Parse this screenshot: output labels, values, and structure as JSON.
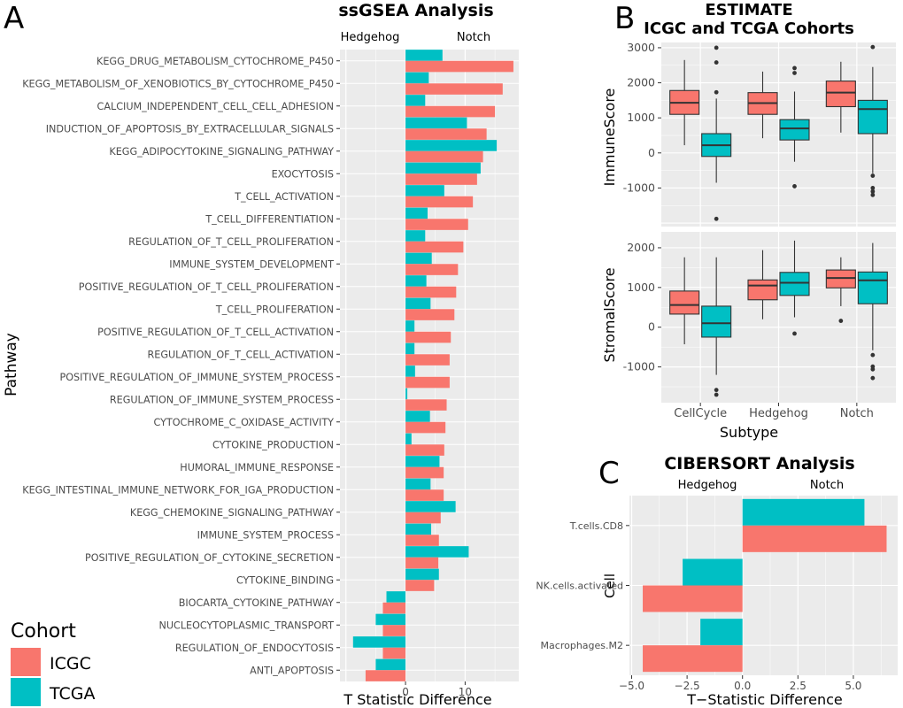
{
  "panel_labels": {
    "a": "A",
    "b": "B",
    "c": "C"
  },
  "colors": {
    "ICGC": "#F8766D",
    "TCGA": "#00BFC4",
    "panel_bg": "#EBEBEB",
    "grid_major": "#FFFFFF",
    "outlier": "#333333",
    "text_tick": "#4D4D4D"
  },
  "legend": {
    "title": "Cohort",
    "items": [
      "ICGC",
      "TCGA"
    ]
  },
  "chart_data": [
    {
      "type": "bar",
      "orientation": "horizontal",
      "title": "ssGSEA Analysis",
      "xlabel": "T Statistic Difference",
      "ylabel": "Pathway",
      "annotations": [
        "Hedgehog",
        "Notch"
      ],
      "xlim": [
        -11,
        19
      ],
      "xticks": [
        0,
        10
      ],
      "grid": true,
      "categories": [
        "KEGG_DRUG_METABOLISM_CYTOCHROME_P450",
        "KEGG_METABOLISM_OF_XENOBIOTICS_BY_CYTOCHROME_P450",
        "CALCIUM_INDEPENDENT_CELL_CELL_ADHESION",
        "INDUCTION_OF_APOPTOSIS_BY_EXTRACELLULAR_SIGNALS",
        "KEGG_ADIPOCYTOKINE_SIGNALING_PATHWAY",
        "EXOCYTOSIS",
        "T_CELL_ACTIVATION",
        "T_CELL_DIFFERENTIATION",
        "REGULATION_OF_T_CELL_PROLIFERATION",
        "IMMUNE_SYSTEM_DEVELOPMENT",
        "POSITIVE_REGULATION_OF_T_CELL_PROLIFERATION",
        "T_CELL_PROLIFERATION",
        "POSITIVE_REGULATION_OF_T_CELL_ACTIVATION",
        "REGULATION_OF_T_CELL_ACTIVATION",
        "POSITIVE_REGULATION_OF_IMMUNE_SYSTEM_PROCESS",
        "REGULATION_OF_IMMUNE_SYSTEM_PROCESS",
        "CYTOCHROME_C_OXIDASE_ACTIVITY",
        "CYTOKINE_PRODUCTION",
        "HUMORAL_IMMUNE_RESPONSE",
        "KEGG_INTESTINAL_IMMUNE_NETWORK_FOR_IGA_PRODUCTION",
        "KEGG_CHEMOKINE_SIGNALING_PATHWAY",
        "IMMUNE_SYSTEM_PROCESS",
        "POSITIVE_REGULATION_OF_CYTOKINE_SECRETION",
        "CYTOKINE_BINDING",
        "BIOCARTA_CYTOKINE_PATHWAY",
        "NUCLEOCYTOPLASMIC_TRANSPORT",
        "REGULATION_OF_ENDOCYTOSIS",
        "ANTI_APOPTOSIS"
      ],
      "series": [
        {
          "name": "ICGC",
          "values": [
            18.1,
            16.3,
            15.0,
            13.6,
            13.0,
            12.0,
            11.3,
            10.5,
            9.7,
            8.8,
            8.5,
            8.2,
            7.6,
            7.4,
            7.4,
            6.9,
            6.7,
            6.5,
            6.4,
            6.4,
            5.9,
            5.6,
            5.5,
            4.8,
            -3.8,
            -3.8,
            -3.8,
            -6.7
          ]
        },
        {
          "name": "TCGA",
          "values": [
            6.2,
            3.9,
            3.3,
            10.3,
            15.3,
            12.6,
            6.5,
            3.7,
            3.3,
            4.4,
            3.5,
            4.2,
            1.5,
            1.5,
            1.6,
            0.3,
            4.1,
            1.0,
            5.7,
            4.2,
            8.4,
            4.3,
            10.6,
            5.6,
            -3.2,
            -5.0,
            -8.8,
            -5.0
          ]
        }
      ]
    },
    {
      "type": "box",
      "title": "ESTIMATE\nICGC and TCGA Cohorts",
      "xlabel": "Subtype",
      "categories": [
        "CellCycle",
        "Hedgehog",
        "Notch"
      ],
      "facets": [
        {
          "ylabel": "ImmuneScore",
          "ylim": [
            -2100,
            3150
          ],
          "yticks": [
            -1000,
            0,
            1000,
            2000,
            3000
          ],
          "series": [
            {
              "name": "ICGC",
              "boxes": [
                {
                  "min": 220,
                  "q1": 1100,
                  "median": 1430,
                  "q3": 1780,
                  "max": 2650,
                  "outliers": []
                },
                {
                  "min": 420,
                  "q1": 1100,
                  "median": 1420,
                  "q3": 1720,
                  "max": 2320,
                  "outliers": []
                },
                {
                  "min": 580,
                  "q1": 1320,
                  "median": 1720,
                  "q3": 2050,
                  "max": 2600,
                  "outliers": []
                }
              ]
            },
            {
              "name": "TCGA",
              "boxes": [
                {
                  "min": -850,
                  "q1": -100,
                  "median": 220,
                  "q3": 550,
                  "max": 1550,
                  "outliers": [
                    3000,
                    2580,
                    1730,
                    -1880
                  ]
                },
                {
                  "min": -250,
                  "q1": 370,
                  "median": 700,
                  "q3": 950,
                  "max": 1750,
                  "outliers": [
                    2420,
                    2280,
                    -950
                  ]
                },
                {
                  "min": -580,
                  "q1": 550,
                  "median": 1250,
                  "q3": 1500,
                  "max": 2450,
                  "outliers": [
                    3020,
                    -650,
                    -1000,
                    -1100,
                    -1200
                  ]
                }
              ]
            }
          ]
        },
        {
          "ylabel": "StromalScore",
          "ylim": [
            -1900,
            2400
          ],
          "yticks": [
            -1000,
            0,
            1000,
            2000
          ],
          "series": [
            {
              "name": "ICGC",
              "boxes": [
                {
                  "min": -430,
                  "q1": 330,
                  "median": 560,
                  "q3": 910,
                  "max": 1760,
                  "outliers": []
                },
                {
                  "min": 200,
                  "q1": 690,
                  "median": 1050,
                  "q3": 1190,
                  "max": 1940,
                  "outliers": []
                },
                {
                  "min": 530,
                  "q1": 990,
                  "median": 1240,
                  "q3": 1440,
                  "max": 1760,
                  "outliers": [
                    160
                  ]
                }
              ]
            },
            {
              "name": "TCGA",
              "boxes": [
                {
                  "min": -1200,
                  "q1": -250,
                  "median": 100,
                  "q3": 530,
                  "max": 1760,
                  "outliers": [
                    -1580,
                    -1700
                  ]
                },
                {
                  "min": 250,
                  "q1": 800,
                  "median": 1120,
                  "q3": 1380,
                  "max": 2180,
                  "outliers": [
                    -160
                  ]
                },
                {
                  "min": -580,
                  "q1": 590,
                  "median": 1180,
                  "q3": 1390,
                  "max": 2120,
                  "outliers": [
                    -700,
                    -990,
                    -1060,
                    -1280
                  ]
                }
              ]
            }
          ]
        }
      ]
    },
    {
      "type": "bar",
      "orientation": "horizontal",
      "title": "CIBERSORT Analysis",
      "xlabel": "T−Statistic Difference",
      "ylabel": "Cell",
      "annotations": [
        "Hedgehog",
        "Notch"
      ],
      "xlim": [
        -5.1,
        7.0
      ],
      "xticks": [
        -5.0,
        -2.5,
        0.0,
        2.5,
        5.0
      ],
      "xticklabels": [
        "−5.0",
        "−2.5",
        "0.0",
        "2.5",
        "5.0"
      ],
      "grid": true,
      "categories": [
        "T.cells.CD8",
        "NK.cells.activated",
        "Macrophages.M2"
      ],
      "series": [
        {
          "name": "ICGC",
          "values": [
            6.5,
            -4.5,
            -4.5
          ]
        },
        {
          "name": "TCGA",
          "values": [
            5.5,
            -2.7,
            -1.9
          ]
        }
      ]
    }
  ]
}
